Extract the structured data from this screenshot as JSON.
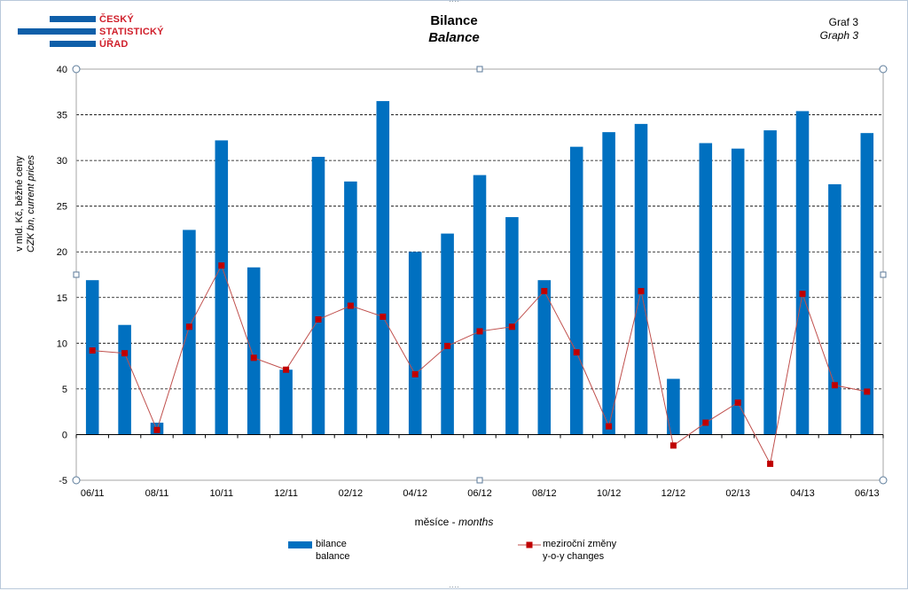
{
  "header": {
    "logo_lines": [
      "ČESKÝ",
      "STATISTICKÝ",
      "ÚŘAD"
    ],
    "title": "Bilance",
    "subtitle": "Balance",
    "graph_label": "Graf 3",
    "graph_label_en": "Graph 3"
  },
  "colors": {
    "bar": "#0070c0",
    "line": "#c0504d",
    "marker": "#c00000",
    "logo_red": "#d0202c",
    "logo_blue": "#0f5fa9"
  },
  "chart_data": {
    "type": "bar",
    "title": "Bilance",
    "subtitle": "Balance",
    "ylabel": "v mld. Kč, běžné ceny",
    "ylabel_en": "CZK bn, current prices",
    "xlabel": "měsíce",
    "xlabel_en": "months",
    "ylim": [
      -5,
      40
    ],
    "yticks": [
      -5,
      0,
      5,
      10,
      15,
      20,
      25,
      30,
      35,
      40
    ],
    "grid": true,
    "legend_position": "bottom",
    "x": [
      "06/11",
      "07/11",
      "08/11",
      "09/11",
      "10/11",
      "11/11",
      "12/11",
      "01/12",
      "02/12",
      "03/12",
      "04/12",
      "05/12",
      "06/12",
      "07/12",
      "08/12",
      "09/12",
      "10/12",
      "11/12",
      "12/12",
      "01/13",
      "02/13",
      "03/13",
      "04/13",
      "05/13",
      "06/13"
    ],
    "xtick_labels": [
      "06/11",
      "",
      "08/11",
      "",
      "10/11",
      "",
      "12/11",
      "",
      "02/12",
      "",
      "04/12",
      "",
      "06/12",
      "",
      "08/12",
      "",
      "10/12",
      "",
      "12/12",
      "",
      "02/13",
      "",
      "04/13",
      "",
      "06/13"
    ],
    "series": [
      {
        "name": "bilance",
        "name_en": "balance",
        "type": "bar",
        "values": [
          16.9,
          12.0,
          1.3,
          22.4,
          32.2,
          18.3,
          7.1,
          30.4,
          27.7,
          36.5,
          20.0,
          22.0,
          28.4,
          23.8,
          16.9,
          31.5,
          33.1,
          34.0,
          6.1,
          31.9,
          31.3,
          33.3,
          35.4,
          27.4,
          33.0
        ]
      },
      {
        "name": "meziroční změny",
        "name_en": "y-o-y changes",
        "type": "line",
        "values": [
          9.2,
          8.9,
          0.5,
          11.8,
          18.5,
          8.4,
          7.1,
          12.6,
          14.1,
          12.9,
          6.6,
          9.7,
          11.3,
          11.8,
          15.7,
          9.0,
          0.9,
          15.7,
          -1.2,
          1.3,
          3.5,
          -3.2,
          15.4,
          5.4,
          4.7
        ]
      }
    ]
  }
}
